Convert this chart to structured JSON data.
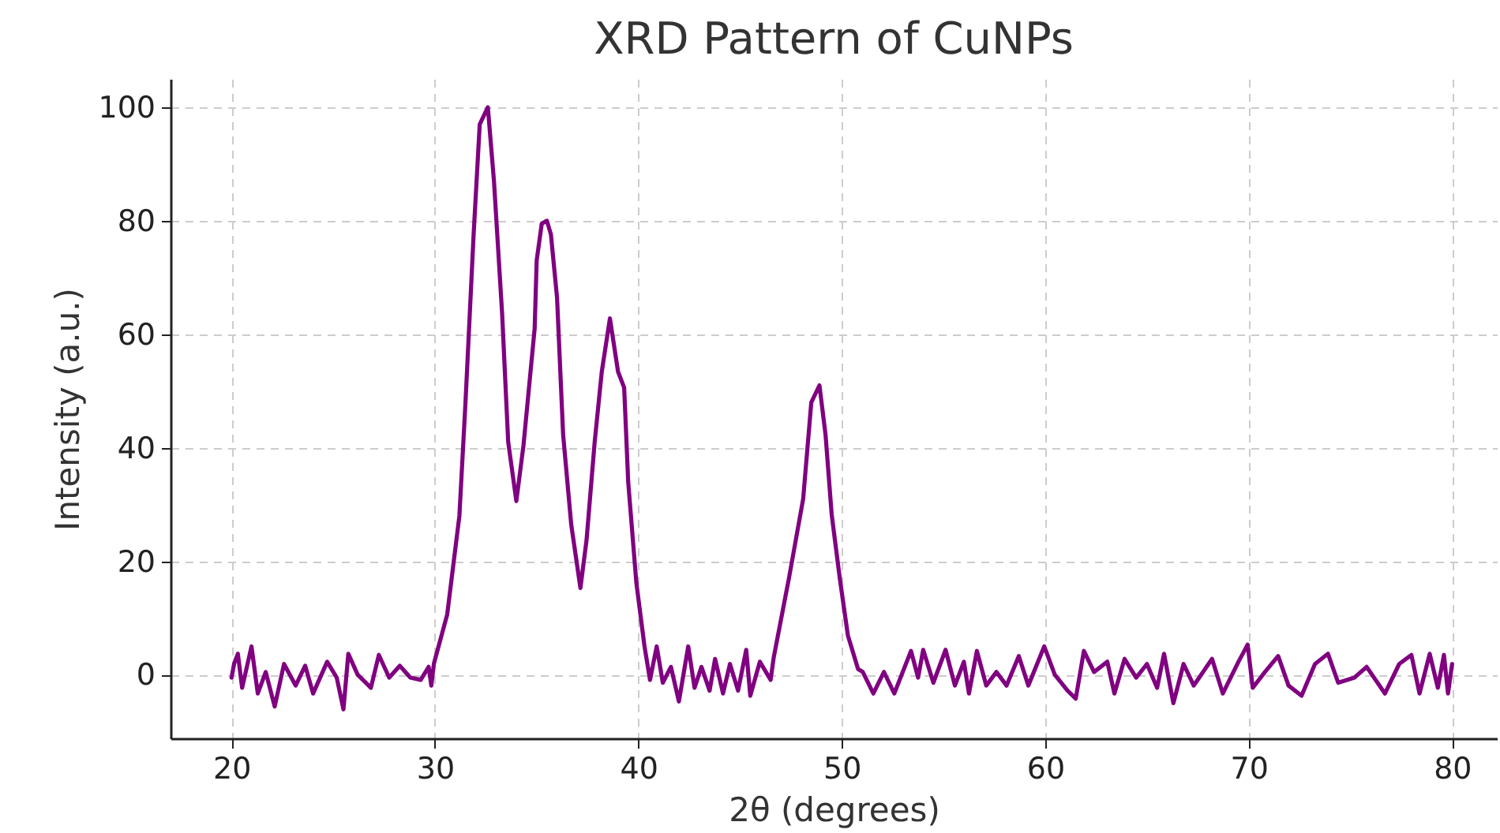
{
  "chart_data": {
    "type": "line",
    "title": "XRD Pattern of CuNPs",
    "xlabel": "2θ (degrees)",
    "ylabel": "Intensity (a.u.)",
    "xlim": [
      17,
      82.2
    ],
    "ylim": [
      -11.2,
      105
    ],
    "xticks": [
      20,
      30,
      40,
      50,
      60,
      70,
      80
    ],
    "yticks": [
      0,
      20,
      40,
      60,
      80,
      100
    ],
    "grid": true,
    "marker": "none",
    "line_style": "solid",
    "series": [
      {
        "color": "#800080",
        "x": [
          20,
          20.13,
          20.31,
          20.52,
          20.98,
          21.29,
          21.68,
          22.12,
          22.58,
          23.15,
          23.62,
          24.01,
          24.7,
          25.17,
          25.5,
          25.74,
          26.2,
          26.85,
          27.24,
          27.75,
          28.27,
          28.79,
          29.3,
          29.69,
          29.82,
          29.95,
          30.6,
          31.2,
          31.5,
          31.9,
          32.2,
          32.6,
          32.9,
          33.3,
          33.6,
          34.0,
          34.35,
          34.9,
          35.0,
          35.25,
          35.5,
          35.7,
          36.0,
          36.3,
          36.7,
          37.15,
          37.45,
          37.85,
          38.2,
          38.6,
          39.0,
          39.3,
          39.5,
          39.9,
          40.3,
          40.57,
          40.9,
          41.2,
          41.6,
          41.99,
          42.45,
          42.76,
          43.1,
          43.5,
          43.77,
          44.16,
          44.5,
          44.9,
          45.3,
          45.5,
          45.97,
          46.5,
          46.65,
          47.4,
          48.1,
          48.5,
          48.9,
          49.2,
          49.5,
          49.9,
          50.3,
          50.8,
          51.03,
          51.55,
          52.07,
          52.58,
          53.4,
          53.75,
          54,
          54.5,
          55.1,
          55.56,
          56,
          56.25,
          56.64,
          57.1,
          57.6,
          58.1,
          58.7,
          59.17,
          59.95,
          60.47,
          61.1,
          61.5,
          61.9,
          62.4,
          63.05,
          63.4,
          63.9,
          64.47,
          65,
          65.5,
          65.84,
          66.3,
          66.8,
          67.3,
          68.2,
          68.73,
          69.5,
          69.95,
          70.2,
          70.8,
          71.45,
          71.96,
          72.6,
          73.26,
          73.9,
          74.4,
          75.2,
          75.8,
          76.7,
          77.4,
          78,
          78.4,
          78.9,
          79.3,
          79.6,
          79.8,
          80
        ],
        "values": [
          -0.5,
          2,
          3.7,
          -2.3,
          5,
          -3.3,
          0.5,
          -5.6,
          1.9,
          -1.9,
          1.6,
          -3.3,
          2.3,
          -0.5,
          -6.1,
          3.7,
          0,
          -2.3,
          3.5,
          -0.5,
          1.6,
          -0.5,
          -0.9,
          1.4,
          -1.9,
          2,
          10.6,
          28,
          48,
          77.6,
          97,
          100,
          87,
          63.7,
          41,
          30.6,
          40.4,
          61,
          73,
          79.5,
          80,
          77.6,
          66.5,
          42.3,
          26.4,
          15.3,
          23.7,
          41,
          53.4,
          62.8,
          53.4,
          50.6,
          33.9,
          16.2,
          5,
          -0.9,
          5,
          -1.4,
          1.4,
          -4.7,
          5,
          -2.3,
          1.4,
          -2.8,
          2.8,
          -3.3,
          1.9,
          -2.8,
          4.4,
          -3.7,
          2.3,
          -0.9,
          3,
          17,
          31,
          48,
          51,
          42.3,
          28.3,
          17,
          6.9,
          1,
          0.5,
          -3.3,
          0.5,
          -3.3,
          4.2,
          -0.5,
          4.4,
          -1.4,
          4.4,
          -1.9,
          2.3,
          -3.3,
          4.2,
          -1.9,
          0.5,
          -1.9,
          3.3,
          -1.9,
          5,
          0,
          -2.8,
          -4.2,
          4.2,
          0.5,
          2.3,
          -3.3,
          2.8,
          -0.5,
          1.9,
          -2.3,
          3.7,
          -5,
          1.9,
          -1.9,
          2.8,
          -3.3,
          2.3,
          5.3,
          -2.3,
          0.5,
          3.3,
          -1.9,
          -3.7,
          1.9,
          3.7,
          -1.4,
          -0.5,
          1.4,
          -3.3,
          1.9,
          3.5,
          -3.3,
          3.7,
          -2.3,
          3.5,
          -3.3,
          1.9
        ]
      }
    ]
  }
}
